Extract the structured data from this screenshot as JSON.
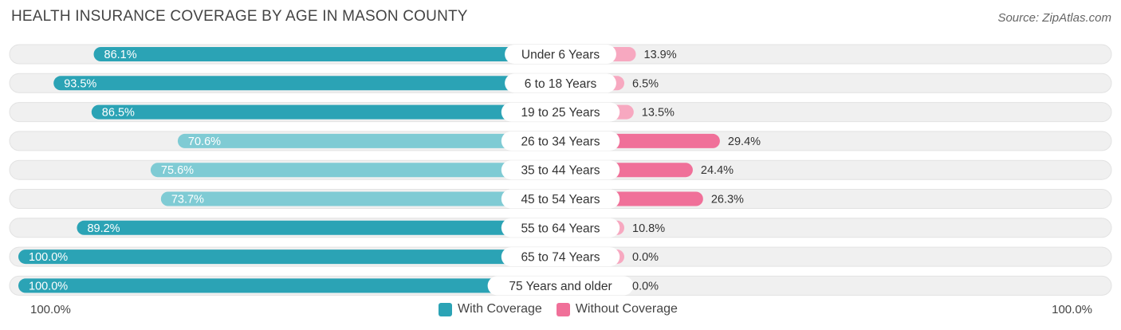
{
  "chart_data": {
    "type": "bar",
    "title": "HEALTH INSURANCE COVERAGE BY AGE IN MASON COUNTY",
    "source": "Source: ZipAtlas.com",
    "categories": [
      "Under 6 Years",
      "6 to 18 Years",
      "19 to 25 Years",
      "26 to 34 Years",
      "35 to 44 Years",
      "45 to 54 Years",
      "55 to 64 Years",
      "65 to 74 Years",
      "75 Years and older"
    ],
    "series": [
      {
        "name": "With Coverage",
        "values": [
          86.1,
          93.5,
          86.5,
          70.6,
          75.6,
          73.7,
          89.2,
          100.0,
          100.0
        ],
        "labels": [
          "86.1%",
          "93.5%",
          "86.5%",
          "70.6%",
          "75.6%",
          "73.7%",
          "89.2%",
          "100.0%",
          "100.0%"
        ]
      },
      {
        "name": "Without Coverage",
        "values": [
          13.9,
          6.5,
          13.5,
          29.4,
          24.4,
          26.3,
          10.8,
          0.0,
          0.0
        ],
        "labels": [
          "13.9%",
          "6.5%",
          "13.5%",
          "29.4%",
          "24.4%",
          "26.3%",
          "10.8%",
          "0.0%",
          "0.0%"
        ]
      }
    ],
    "axis_left_label": "100.0%",
    "axis_right_label": "100.0%",
    "xlim": [
      -100,
      100
    ],
    "legend_position": "bottom-center"
  },
  "colors": {
    "with_dark": "#2ba3b5",
    "with_light": "#7fcbd4",
    "without_dark": "#f07099",
    "without_light": "#f7a8c0",
    "track": "#f0f0f0"
  }
}
